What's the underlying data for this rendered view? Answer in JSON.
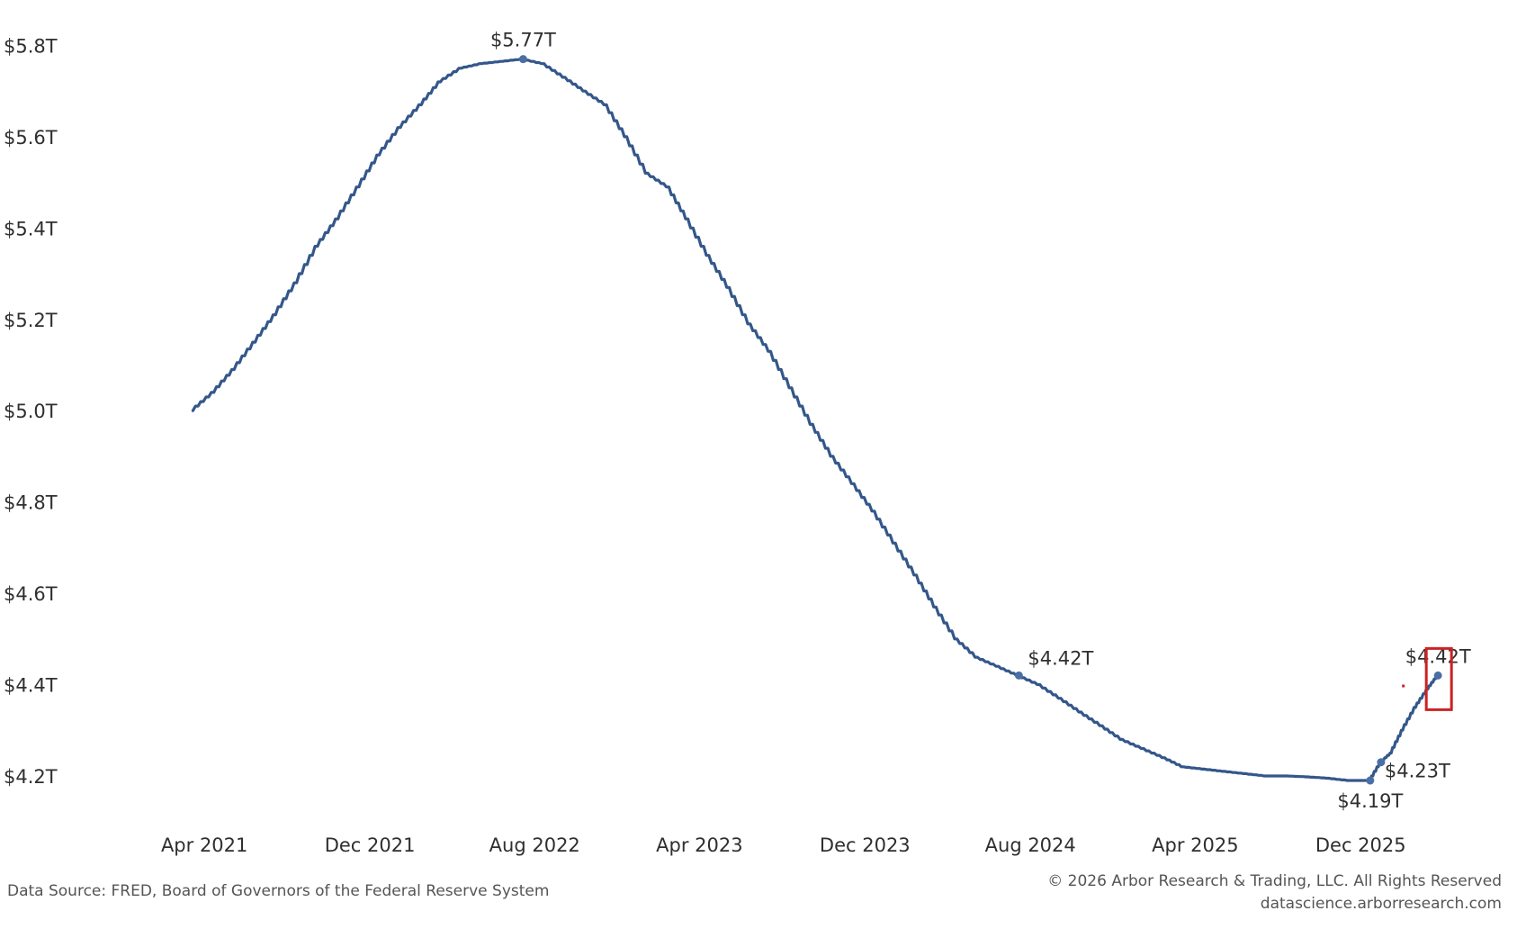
{
  "chart_data": {
    "type": "line",
    "title": "",
    "xlabel": "",
    "ylabel": "",
    "ylim": [
      4.1,
      5.85
    ],
    "y_ticks": [
      {
        "value": 5.8,
        "label": "$5.8T"
      },
      {
        "value": 5.6,
        "label": "$5.6T"
      },
      {
        "value": 5.4,
        "label": "$5.4T"
      },
      {
        "value": 5.2,
        "label": "$5.2T"
      },
      {
        "value": 5.0,
        "label": "$5.0T"
      },
      {
        "value": 4.8,
        "label": "$4.8T"
      },
      {
        "value": 4.6,
        "label": "$4.6T"
      },
      {
        "value": 4.4,
        "label": "$4.4T"
      },
      {
        "value": 4.2,
        "label": "$4.2T"
      }
    ],
    "x_ticks": [
      {
        "date": "2021-04",
        "label": "Apr 2021"
      },
      {
        "date": "2021-12",
        "label": "Dec 2021"
      },
      {
        "date": "2022-08",
        "label": "Aug 2022"
      },
      {
        "date": "2023-04",
        "label": "Apr 2023"
      },
      {
        "date": "2023-12",
        "label": "Dec 2023"
      },
      {
        "date": "2024-08",
        "label": "Aug 2024"
      },
      {
        "date": "2025-04",
        "label": "Apr 2025"
      },
      {
        "date": "2025-12",
        "label": "Dec 2025"
      }
    ],
    "series": [
      {
        "color": "#34578a",
        "points": [
          {
            "date": "2021-03-15",
            "value": 5.0
          },
          {
            "date": "2021-04-15",
            "value": 5.04
          },
          {
            "date": "2021-05-15",
            "value": 5.09
          },
          {
            "date": "2021-06-15",
            "value": 5.15
          },
          {
            "date": "2021-07-15",
            "value": 5.21
          },
          {
            "date": "2021-08-15",
            "value": 5.28
          },
          {
            "date": "2021-09-15",
            "value": 5.36
          },
          {
            "date": "2021-10-15",
            "value": 5.42
          },
          {
            "date": "2021-11-15",
            "value": 5.49
          },
          {
            "date": "2021-12-15",
            "value": 5.56
          },
          {
            "date": "2022-01-15",
            "value": 5.62
          },
          {
            "date": "2022-02-15",
            "value": 5.67
          },
          {
            "date": "2022-03-15",
            "value": 5.72
          },
          {
            "date": "2022-04-15",
            "value": 5.75
          },
          {
            "date": "2022-05-15",
            "value": 5.76
          },
          {
            "date": "2022-06-15",
            "value": 5.765
          },
          {
            "date": "2022-07-15",
            "value": 5.77
          },
          {
            "date": "2022-08-15",
            "value": 5.76
          },
          {
            "date": "2022-09-15",
            "value": 5.73
          },
          {
            "date": "2022-10-15",
            "value": 5.7
          },
          {
            "date": "2022-11-15",
            "value": 5.67
          },
          {
            "date": "2022-12-15",
            "value": 5.6
          },
          {
            "date": "2023-01-15",
            "value": 5.52
          },
          {
            "date": "2023-02-15",
            "value": 5.49
          },
          {
            "date": "2023-03-15",
            "value": 5.42
          },
          {
            "date": "2023-04-15",
            "value": 5.34
          },
          {
            "date": "2023-05-15",
            "value": 5.27
          },
          {
            "date": "2023-06-15",
            "value": 5.19
          },
          {
            "date": "2023-07-15",
            "value": 5.13
          },
          {
            "date": "2023-08-15",
            "value": 5.05
          },
          {
            "date": "2023-09-15",
            "value": 4.97
          },
          {
            "date": "2023-10-15",
            "value": 4.9
          },
          {
            "date": "2023-11-15",
            "value": 4.84
          },
          {
            "date": "2023-12-15",
            "value": 4.78
          },
          {
            "date": "2024-01-15",
            "value": 4.71
          },
          {
            "date": "2024-02-15",
            "value": 4.64
          },
          {
            "date": "2024-03-15",
            "value": 4.57
          },
          {
            "date": "2024-04-15",
            "value": 4.5
          },
          {
            "date": "2024-05-15",
            "value": 4.46
          },
          {
            "date": "2024-06-15",
            "value": 4.44
          },
          {
            "date": "2024-07-15",
            "value": 4.42
          },
          {
            "date": "2024-08-15",
            "value": 4.4
          },
          {
            "date": "2024-09-15",
            "value": 4.37
          },
          {
            "date": "2024-10-15",
            "value": 4.34
          },
          {
            "date": "2024-11-15",
            "value": 4.31
          },
          {
            "date": "2024-12-15",
            "value": 4.28
          },
          {
            "date": "2025-01-15",
            "value": 4.26
          },
          {
            "date": "2025-02-15",
            "value": 4.24
          },
          {
            "date": "2025-03-15",
            "value": 4.22
          },
          {
            "date": "2025-04-15",
            "value": 4.215
          },
          {
            "date": "2025-05-15",
            "value": 4.21
          },
          {
            "date": "2025-06-15",
            "value": 4.205
          },
          {
            "date": "2025-07-15",
            "value": 4.2
          },
          {
            "date": "2025-08-15",
            "value": 4.2
          },
          {
            "date": "2025-09-15",
            "value": 4.198
          },
          {
            "date": "2025-10-15",
            "value": 4.195
          },
          {
            "date": "2025-11-15",
            "value": 4.19
          },
          {
            "date": "2025-12-15",
            "value": 4.19
          },
          {
            "date": "2025-12-31",
            "value": 4.23
          },
          {
            "date": "2026-01-15",
            "value": 4.25
          },
          {
            "date": "2026-02-01",
            "value": 4.3
          },
          {
            "date": "2026-02-20",
            "value": 4.35
          },
          {
            "date": "2026-03-10",
            "value": 4.39
          },
          {
            "date": "2026-03-25",
            "value": 4.42
          }
        ]
      }
    ],
    "annotations": [
      {
        "date": "2022-07-15",
        "value": 5.77,
        "label": "$5.77T",
        "position": "above"
      },
      {
        "date": "2024-07-15",
        "value": 4.42,
        "label": "$4.42T",
        "position": "above-right"
      },
      {
        "date": "2025-12-15",
        "value": 4.19,
        "label": "$4.19T",
        "position": "below"
      },
      {
        "date": "2025-12-31",
        "value": 4.23,
        "label": "$4.23T",
        "position": "below-right"
      },
      {
        "date": "2026-03-25",
        "value": 4.42,
        "label": "$4.42T",
        "position": "above"
      }
    ],
    "highlight_box": {
      "date": "2026-03-25",
      "value": 4.42,
      "color": "#cc2222"
    },
    "grid": false,
    "legend": "none"
  },
  "footer": {
    "source": "Data Source: FRED, Board of Governors of the Federal Reserve System",
    "copyright": "© 2026 Arbor Research & Trading, LLC. All Rights Reserved",
    "website": "datascience.arborresearch.com"
  }
}
